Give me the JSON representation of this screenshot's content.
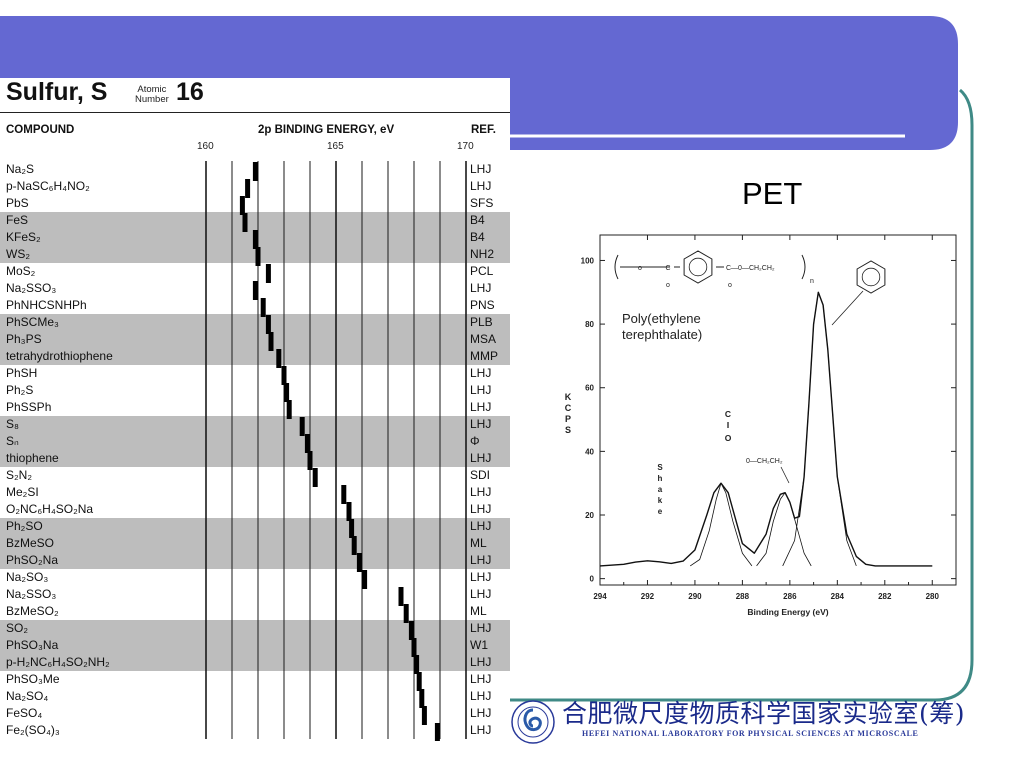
{
  "slide": {
    "accent_color": "#6468d2",
    "frame_color": "#3f8a86"
  },
  "sulfur_table": {
    "element_name": "Sulfur, S",
    "atomic_label_1": "Atomic",
    "atomic_label_2": "Number",
    "atomic_number": "16",
    "col_compound": "COMPOUND",
    "col_energy": "2p BINDING ENERGY, eV",
    "col_ref": "REF."
  },
  "pet": {
    "title": "PET",
    "polymer_label_1": "Poly(ethylene",
    "polymer_label_2": "terephthalate)",
    "annot_shake": "Shake",
    "annot_co": "C=O",
    "annot_och2": "0—CH₂CH₂",
    "struct_o": "o",
    "struct_c1": "C",
    "struct_c2": "C—0—CH₂CH₂",
    "struct_n": "n"
  },
  "footer": {
    "institution_cn": "合肥微尺度物质科学国家实验室(筹)",
    "institution_en": "HEFEI NATIONAL LABORATORY FOR PHYSICAL SCIENCES AT MICROSCALE",
    "logo_icon": "institution-seal-icon"
  },
  "chart_data": [
    {
      "type": "table",
      "title": "Sulfur, S",
      "xlabel": "2p BINDING ENERGY, eV",
      "xlim": [
        160,
        170
      ],
      "xticks": [
        160,
        165,
        170
      ],
      "rows": [
        {
          "compound": "Na₂S",
          "energy": 161.9,
          "ref": "LHJ",
          "shaded": false
        },
        {
          "compound": "p-NaSC₆H₄NO₂",
          "energy": 161.6,
          "ref": "LHJ",
          "shaded": false
        },
        {
          "compound": "PbS",
          "energy": 161.4,
          "ref": "SFS",
          "shaded": false
        },
        {
          "compound": "FeS",
          "energy": 161.5,
          "ref": "B4",
          "shaded": true
        },
        {
          "compound": "KFeS₂",
          "energy": 161.9,
          "ref": "B4",
          "shaded": true
        },
        {
          "compound": "WS₂",
          "energy": 162.0,
          "ref": "NH2",
          "shaded": true
        },
        {
          "compound": "MoS₂",
          "energy": 162.4,
          "ref": "PCL",
          "shaded": false
        },
        {
          "compound": "Na₂SSO₃",
          "energy": 161.9,
          "ref": "LHJ",
          "shaded": false
        },
        {
          "compound": "PhNHCSNHPh",
          "energy": 162.2,
          "ref": "PNS",
          "shaded": false
        },
        {
          "compound": "PhSCMe₃",
          "energy": 162.4,
          "ref": "PLB",
          "shaded": true
        },
        {
          "compound": "Ph₃PS",
          "energy": 162.5,
          "ref": "MSA",
          "shaded": true
        },
        {
          "compound": "tetrahydrothiophene",
          "energy": 162.8,
          "ref": "MMP",
          "shaded": true
        },
        {
          "compound": "PhSH",
          "energy": 163.0,
          "ref": "LHJ",
          "shaded": false
        },
        {
          "compound": "Ph₂S",
          "energy": 163.1,
          "ref": "LHJ",
          "shaded": false
        },
        {
          "compound": "PhSSPh",
          "energy": 163.2,
          "ref": "LHJ",
          "shaded": false
        },
        {
          "compound": "S₈",
          "energy": 163.7,
          "ref": "LHJ",
          "shaded": true
        },
        {
          "compound": "Sₙ",
          "energy": 163.9,
          "ref": "Φ",
          "shaded": true
        },
        {
          "compound": "thiophene",
          "energy": 164.0,
          "ref": "LHJ",
          "shaded": true
        },
        {
          "compound": "S₂N₂",
          "energy": 164.2,
          "ref": "SDI",
          "shaded": false
        },
        {
          "compound": "Me₂SI",
          "energy": 165.3,
          "ref": "LHJ",
          "shaded": false
        },
        {
          "compound": "O₂NC₆H₄SO₂Na",
          "energy": 165.5,
          "ref": "LHJ",
          "shaded": false
        },
        {
          "compound": "Ph₂SO",
          "energy": 165.6,
          "ref": "LHJ",
          "shaded": true
        },
        {
          "compound": "BzMeSO",
          "energy": 165.7,
          "ref": "ML",
          "shaded": true
        },
        {
          "compound": "PhSO₂Na",
          "energy": 165.9,
          "ref": "LHJ",
          "shaded": true
        },
        {
          "compound": "Na₂SO₃",
          "energy": 166.1,
          "ref": "LHJ",
          "shaded": false
        },
        {
          "compound": "Na₂SSO₃",
          "energy": 167.5,
          "ref": "LHJ",
          "shaded": false
        },
        {
          "compound": "BzMeSO₂",
          "energy": 167.7,
          "ref": "ML",
          "shaded": false
        },
        {
          "compound": "SO₂",
          "energy": 167.9,
          "ref": "LHJ",
          "shaded": true
        },
        {
          "compound": "PhSO₃Na",
          "energy": 168.0,
          "ref": "W1",
          "shaded": true
        },
        {
          "compound": "p-H₂NC₆H₄SO₂NH₂",
          "energy": 168.1,
          "ref": "LHJ",
          "shaded": true
        },
        {
          "compound": "PhSO₃Me",
          "energy": 168.2,
          "ref": "LHJ",
          "shaded": false
        },
        {
          "compound": "Na₂SO₄",
          "energy": 168.3,
          "ref": "LHJ",
          "shaded": false
        },
        {
          "compound": "FeSO₄",
          "energy": 168.4,
          "ref": "LHJ",
          "shaded": false
        },
        {
          "compound": "Fe₂(SO₄)₃",
          "energy": 168.9,
          "ref": "LHJ",
          "shaded": false
        }
      ]
    },
    {
      "type": "line",
      "title": "PET",
      "xlabel": "Binding Energy (eV)",
      "ylabel": "KCPS",
      "xlim": [
        294,
        279
      ],
      "ylim": [
        -2,
        108
      ],
      "xticks": [
        294,
        292,
        290,
        288,
        286,
        284,
        282,
        280
      ],
      "yticks": [
        0,
        20,
        40,
        60,
        80,
        100
      ],
      "x_reversed": true,
      "series": [
        {
          "name": "envelope",
          "x": [
            294,
            293,
            292.5,
            292,
            291.5,
            291,
            290.5,
            290,
            289.5,
            289.2,
            288.9,
            288.6,
            288.3,
            288,
            287.5,
            287,
            286.7,
            286.4,
            286.2,
            286,
            285.8,
            285.6,
            285.4,
            285.2,
            285,
            284.8,
            284.6,
            284.4,
            284.2,
            284,
            283.6,
            283.2,
            282.8,
            282.4,
            282,
            281.5,
            281,
            280.5,
            280
          ],
          "y": [
            4,
            4.5,
            5.2,
            5.6,
            5.3,
            4.8,
            5.5,
            9,
            20,
            27,
            30,
            27,
            19,
            11,
            8,
            14,
            22,
            26.5,
            27,
            24,
            19,
            19.5,
            32,
            55,
            80,
            90,
            86,
            72,
            52,
            32,
            14,
            7,
            4.5,
            4,
            4,
            4,
            4,
            4,
            4
          ]
        },
        {
          "name": "C=O",
          "x": [
            290.2,
            289.8,
            289.4,
            289.1,
            288.9,
            288.7,
            288.4,
            288,
            287.6
          ],
          "y": [
            4,
            6,
            15,
            25,
            30,
            27,
            18,
            8,
            4
          ]
        },
        {
          "name": "O-CH2CH2",
          "x": [
            287.4,
            287,
            286.7,
            286.4,
            286.2,
            286,
            285.7,
            285.4,
            285.1
          ],
          "y": [
            4,
            8,
            18,
            25,
            27,
            24,
            16,
            8,
            4
          ]
        },
        {
          "name": "phenyl",
          "x": [
            286.3,
            285.8,
            285.4,
            285.2,
            285,
            284.8,
            284.6,
            284.4,
            284.2,
            284,
            283.6,
            283.2
          ],
          "y": [
            4,
            12,
            32,
            55,
            80,
            90,
            86,
            72,
            52,
            32,
            12,
            4
          ]
        }
      ]
    }
  ]
}
